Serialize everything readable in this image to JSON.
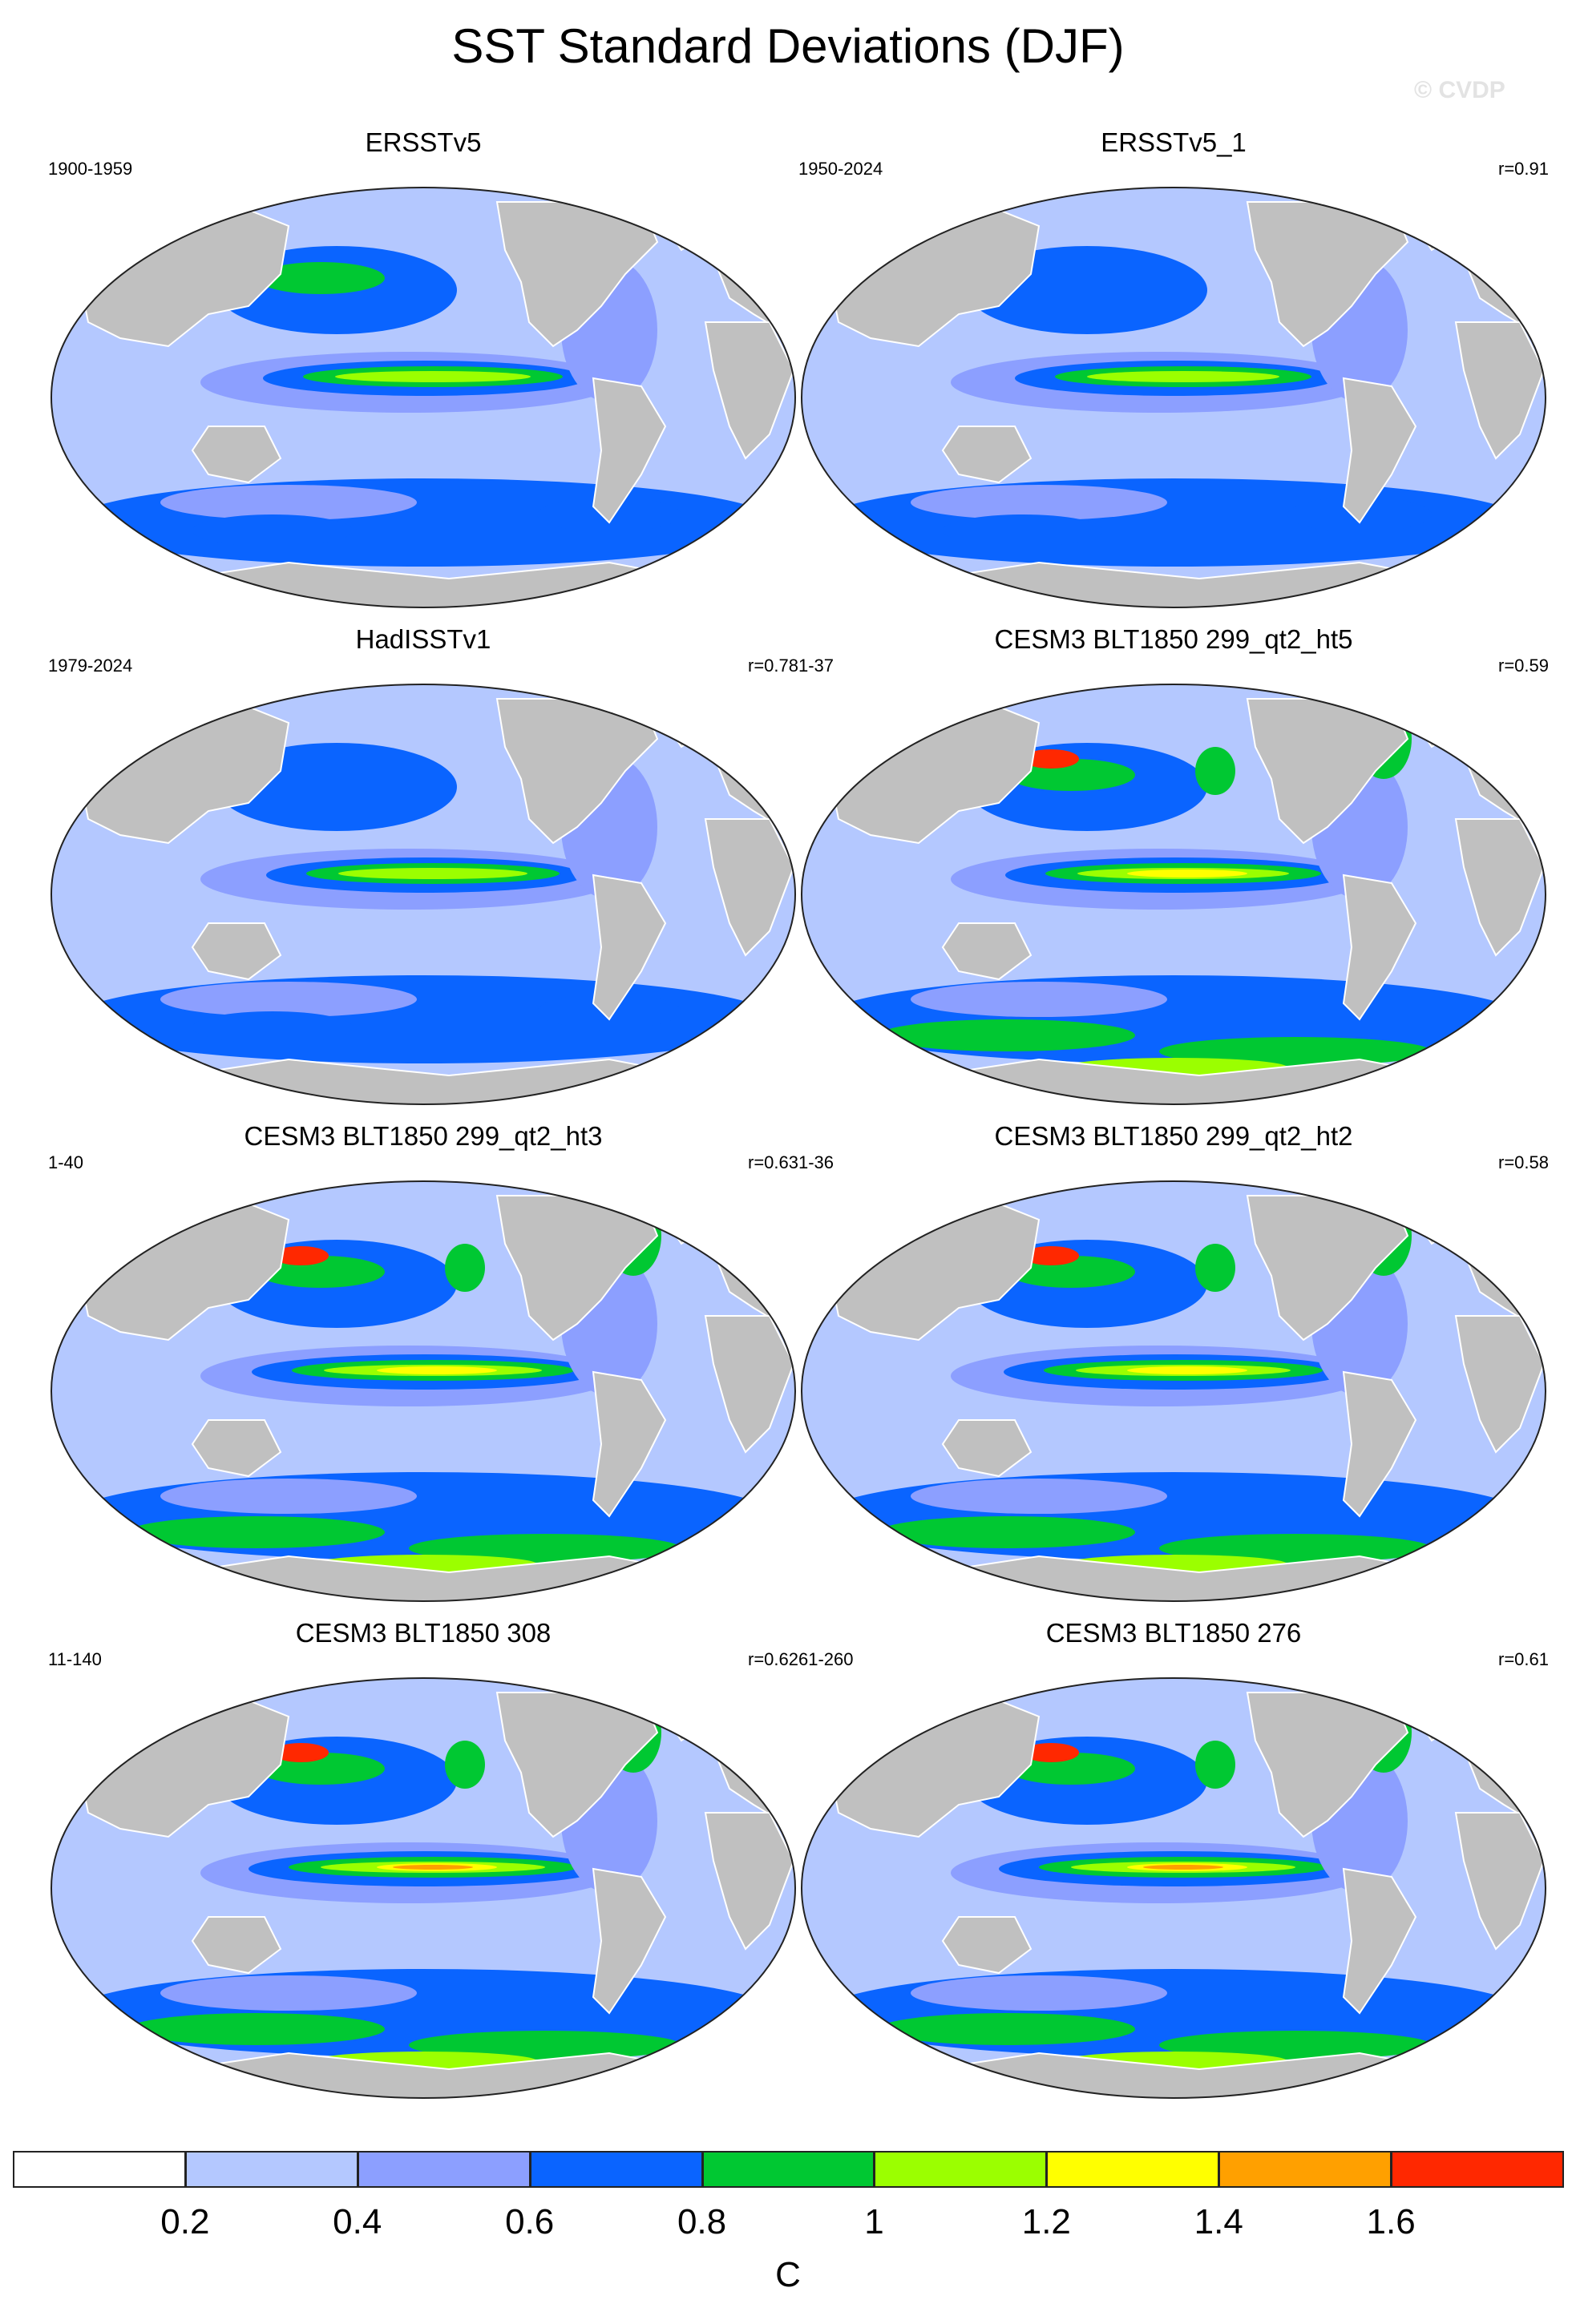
{
  "figure": {
    "title": "SST Standard Deviations (DJF)",
    "watermark": "© CVDP"
  },
  "panels": [
    {
      "title": "ERSSTv5",
      "period": "1900-1959",
      "corr": "",
      "intensity": 0.55,
      "variant": "obs"
    },
    {
      "title": "ERSSTv5_1",
      "period": "1950-2024",
      "corr": "r=0.91",
      "intensity": 0.5,
      "variant": "obs"
    },
    {
      "title": "HadISSTv1",
      "period": "1979-2024",
      "corr": "r=0.78",
      "intensity": 0.45,
      "variant": "obs"
    },
    {
      "title": "CESM3 BLT1850 299_qt2_ht5",
      "period": "1-37",
      "corr": "r=0.59",
      "intensity": 0.8,
      "variant": "model"
    },
    {
      "title": "CESM3 BLT1850 299_qt2_ht3",
      "period": "1-40",
      "corr": "r=0.63",
      "intensity": 0.9,
      "variant": "model"
    },
    {
      "title": "CESM3 BLT1850 299_qt2_ht2",
      "period": "1-36",
      "corr": "r=0.58",
      "intensity": 0.85,
      "variant": "model"
    },
    {
      "title": "CESM3 BLT1850 308",
      "period": "11-140",
      "corr": "r=0.62",
      "intensity": 1.0,
      "variant": "model"
    },
    {
      "title": "CESM3 BLT1850 276",
      "period": "61-260",
      "corr": "r=0.61",
      "intensity": 1.0,
      "variant": "model"
    }
  ],
  "colorbar": {
    "units": "C",
    "labels": [
      "0.2",
      "0.4",
      "0.6",
      "0.8",
      "1",
      "1.2",
      "1.4",
      "1.6"
    ],
    "colors": [
      "#ffffff",
      "#b4c8ff",
      "#8c9fff",
      "#0a64ff",
      "#00c832",
      "#9bff00",
      "#ffff00",
      "#ffa000",
      "#ff2800"
    ]
  },
  "colors": {
    "land": "#c0c0c0",
    "ocean_base": "#b4c8ff"
  }
}
